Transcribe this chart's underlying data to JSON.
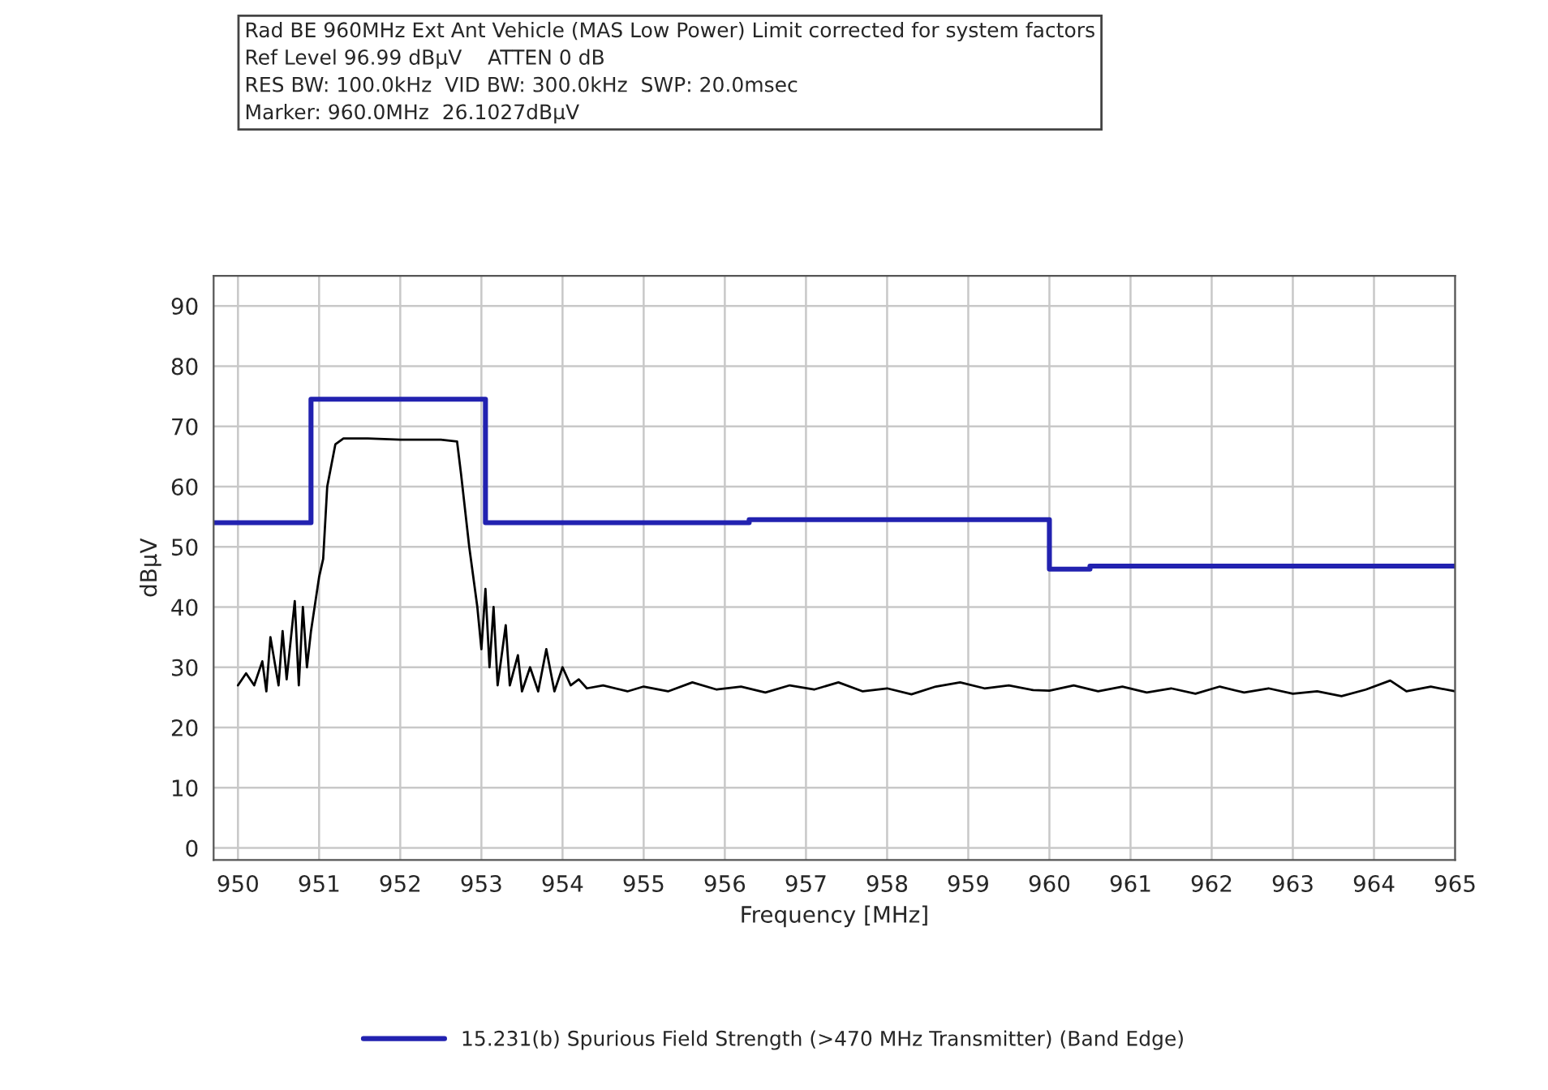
{
  "chart_data": {
    "type": "line",
    "xlabel": "Frequency [MHz]",
    "ylabel": "dBµV",
    "annotations": [
      "Rad BE 960MHz Ext Ant Vehicle (MAS Low Power) Limit corrected for system factors",
      "Ref Level 96.99 dBµV    ATTEN 0 dB",
      "RES BW: 100.0kHz  VID BW: 300.0kHz  SWP: 20.0msec",
      "Marker: 960.0MHz  26.1027dBµV"
    ],
    "xlim": [
      949.7,
      965
    ],
    "ylim": [
      -2,
      95
    ],
    "xticks": [
      950,
      951,
      952,
      953,
      954,
      955,
      956,
      957,
      958,
      959,
      960,
      961,
      962,
      963,
      964,
      965
    ],
    "yticks": [
      0,
      10,
      20,
      30,
      40,
      50,
      60,
      70,
      80,
      90
    ],
    "grid": true,
    "legend": "bottom",
    "series": [
      {
        "name": "15.231(b) Spurious Field Strength (>470 MHz Transmitter) (Band Edge)",
        "color": "#2222b0",
        "type": "step",
        "x": [
          949.7,
          950.9,
          953.05,
          956.3,
          960.0,
          960.5,
          965.0
        ],
        "values": [
          54,
          74.5,
          54,
          54.5,
          46.3,
          46.8,
          46.8
        ]
      },
      {
        "color": "#000000",
        "x": [
          950.0,
          950.1,
          950.2,
          950.3,
          950.35,
          950.4,
          950.5,
          950.55,
          950.6,
          950.7,
          950.75,
          950.8,
          950.85,
          950.9,
          951.0,
          951.05,
          951.1,
          951.2,
          951.3,
          951.6,
          952.0,
          952.5,
          952.7,
          952.75,
          952.85,
          952.95,
          953.0,
          953.05,
          953.1,
          953.15,
          953.2,
          953.3,
          953.35,
          953.45,
          953.5,
          953.6,
          953.7,
          953.8,
          953.9,
          954.0,
          954.1,
          954.2,
          954.3,
          954.5,
          954.8,
          955.0,
          955.3,
          955.6,
          955.9,
          956.2,
          956.5,
          956.8,
          957.1,
          957.4,
          957.7,
          958.0,
          958.3,
          958.6,
          958.9,
          959.2,
          959.5,
          959.8,
          960.0,
          960.3,
          960.6,
          960.9,
          961.2,
          961.5,
          961.8,
          962.1,
          962.4,
          962.7,
          963.0,
          963.3,
          963.6,
          963.9,
          964.2,
          964.4,
          964.7,
          965.0
        ],
        "values": [
          27,
          29,
          27,
          31,
          26,
          35,
          27,
          36,
          28,
          41,
          27,
          40,
          30,
          36,
          45,
          48,
          60,
          67,
          68,
          68,
          67.8,
          67.8,
          67.5,
          62,
          50,
          40,
          33,
          43,
          30,
          40,
          27,
          37,
          27,
          32,
          26,
          30,
          26,
          33,
          26,
          30,
          27,
          28,
          26.5,
          27,
          26,
          26.8,
          26,
          27.5,
          26.3,
          26.8,
          25.8,
          27,
          26.3,
          27.5,
          26,
          26.5,
          25.5,
          26.8,
          27.5,
          26.5,
          27,
          26.2,
          26.1,
          27,
          26,
          26.8,
          25.8,
          26.5,
          25.6,
          26.8,
          25.8,
          26.5,
          25.6,
          26,
          25.2,
          26.3,
          27.8,
          26,
          26.8,
          26
        ]
      }
    ]
  }
}
